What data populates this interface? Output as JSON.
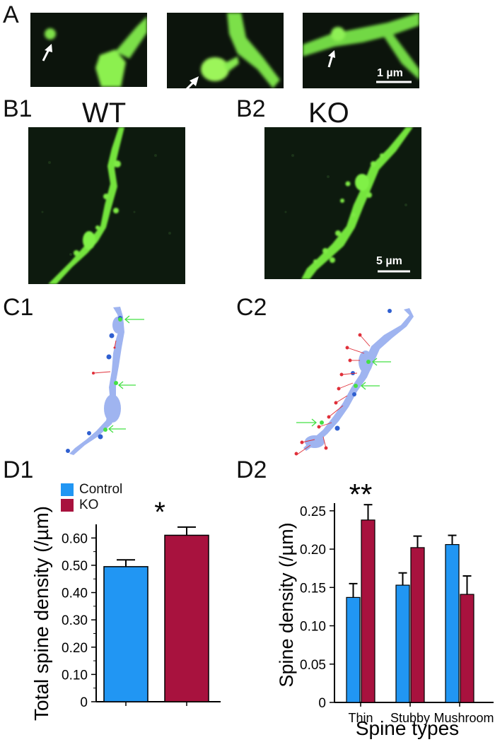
{
  "panels": {
    "a": "A",
    "b1": "B1",
    "b2": "B2",
    "c1": "C1",
    "c2": "C2",
    "d1": "D1",
    "d2": "D2"
  },
  "images": {
    "wt_label": "WT",
    "ko_label": "KO",
    "scale_a": "1 µm",
    "scale_b": "5 µm"
  },
  "legend": {
    "items": [
      {
        "label": "Control",
        "color": "#2196f3"
      },
      {
        "label": "KO",
        "color": "#a8123e"
      }
    ]
  },
  "colors": {
    "control": "#2196f3",
    "ko": "#a8123e",
    "tracing": "#9fb4f0",
    "thin_marker": "#e0303a",
    "stubby_marker": "#2f5fd0",
    "mushroom_arrow": "#44e044"
  },
  "chart_data": [
    {
      "id": "D1",
      "type": "bar",
      "categories": [
        "Control",
        "KO"
      ],
      "values": [
        0.495,
        0.61
      ],
      "errors": [
        0.025,
        0.03
      ],
      "ylabel": "Total spine density (/µm)",
      "xlabel": "",
      "ylim": [
        0,
        0.65
      ],
      "yticks": [
        "0",
        "0.10",
        "0.20",
        "0.30",
        "0.40",
        "0.50",
        "0.60"
      ],
      "significance": "*"
    },
    {
      "id": "D2",
      "type": "bar",
      "categories": [
        "Thin",
        "Stubby",
        "Mushroom"
      ],
      "series": [
        {
          "name": "Control",
          "values": [
            0.137,
            0.153,
            0.206
          ],
          "errors": [
            0.018,
            0.016,
            0.012
          ]
        },
        {
          "name": "KO",
          "values": [
            0.238,
            0.202,
            0.141
          ],
          "errors": [
            0.02,
            0.015,
            0.024
          ]
        }
      ],
      "ylabel": "Spine density (/µm)",
      "xlabel": "Spine types",
      "ylim": [
        0,
        0.26
      ],
      "yticks": [
        "0",
        "0.05",
        "0.10",
        "0.15",
        "0.20",
        "0.25"
      ],
      "significance": "**"
    }
  ]
}
